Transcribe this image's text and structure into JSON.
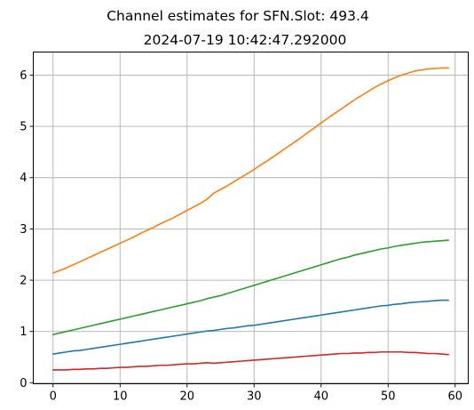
{
  "chart_data": {
    "type": "line",
    "title": "Channel estimates for SFN.Slot: 493.4",
    "subtitle": "2024-07-19 10:42:47.292000",
    "xlabel": "",
    "ylabel": "",
    "xlim": [
      -2.95,
      61.95
    ],
    "ylim": [
      -0.02,
      6.45
    ],
    "xticks": [
      0,
      10,
      20,
      30,
      40,
      50,
      60
    ],
    "yticks": [
      0,
      1,
      2,
      3,
      4,
      5,
      6
    ],
    "grid": true,
    "legend": "none",
    "x": [
      0,
      1,
      2,
      3,
      4,
      5,
      6,
      7,
      8,
      9,
      10,
      11,
      12,
      13,
      14,
      15,
      16,
      17,
      18,
      19,
      20,
      21,
      22,
      23,
      24,
      25,
      26,
      27,
      28,
      29,
      30,
      31,
      32,
      33,
      34,
      35,
      36,
      37,
      38,
      39,
      40,
      41,
      42,
      43,
      44,
      45,
      46,
      47,
      48,
      49,
      50,
      51,
      52,
      53,
      54,
      55,
      56,
      57,
      58,
      59
    ],
    "series": [
      {
        "color": "#ff7f0e",
        "values": [
          2.14,
          2.19,
          2.24,
          2.3,
          2.36,
          2.42,
          2.48,
          2.54,
          2.6,
          2.66,
          2.72,
          2.78,
          2.84,
          2.91,
          2.97,
          3.03,
          3.1,
          3.16,
          3.22,
          3.29,
          3.36,
          3.43,
          3.5,
          3.58,
          3.7,
          3.77,
          3.84,
          3.92,
          4.0,
          4.08,
          4.16,
          4.25,
          4.33,
          4.42,
          4.51,
          4.6,
          4.69,
          4.78,
          4.88,
          4.97,
          5.07,
          5.16,
          5.25,
          5.34,
          5.43,
          5.52,
          5.6,
          5.68,
          5.76,
          5.83,
          5.89,
          5.95,
          6.0,
          6.04,
          6.08,
          6.1,
          6.12,
          6.13,
          6.14,
          6.14
        ]
      },
      {
        "color": "#2ca02c",
        "values": [
          0.94,
          0.97,
          1.0,
          1.03,
          1.06,
          1.09,
          1.12,
          1.15,
          1.18,
          1.21,
          1.24,
          1.27,
          1.3,
          1.33,
          1.36,
          1.39,
          1.42,
          1.45,
          1.48,
          1.51,
          1.54,
          1.57,
          1.6,
          1.64,
          1.67,
          1.7,
          1.74,
          1.78,
          1.82,
          1.86,
          1.9,
          1.94,
          1.98,
          2.02,
          2.06,
          2.1,
          2.14,
          2.18,
          2.22,
          2.26,
          2.3,
          2.34,
          2.38,
          2.42,
          2.45,
          2.49,
          2.52,
          2.55,
          2.58,
          2.61,
          2.63,
          2.66,
          2.68,
          2.7,
          2.72,
          2.74,
          2.75,
          2.76,
          2.77,
          2.78
        ]
      },
      {
        "color": "#1f77b4",
        "values": [
          0.56,
          0.58,
          0.6,
          0.62,
          0.63,
          0.65,
          0.67,
          0.69,
          0.71,
          0.73,
          0.75,
          0.77,
          0.79,
          0.81,
          0.83,
          0.85,
          0.87,
          0.89,
          0.91,
          0.93,
          0.95,
          0.97,
          0.99,
          1.01,
          1.02,
          1.04,
          1.06,
          1.07,
          1.09,
          1.11,
          1.12,
          1.14,
          1.16,
          1.18,
          1.2,
          1.22,
          1.24,
          1.26,
          1.28,
          1.3,
          1.32,
          1.34,
          1.36,
          1.38,
          1.4,
          1.42,
          1.44,
          1.46,
          1.48,
          1.5,
          1.51,
          1.53,
          1.54,
          1.56,
          1.57,
          1.58,
          1.59,
          1.6,
          1.61,
          1.61
        ]
      },
      {
        "color": "#d62728",
        "values": [
          0.25,
          0.25,
          0.25,
          0.26,
          0.26,
          0.27,
          0.27,
          0.28,
          0.28,
          0.29,
          0.3,
          0.3,
          0.31,
          0.32,
          0.32,
          0.33,
          0.34,
          0.34,
          0.35,
          0.36,
          0.37,
          0.37,
          0.38,
          0.39,
          0.38,
          0.39,
          0.4,
          0.41,
          0.42,
          0.43,
          0.44,
          0.45,
          0.46,
          0.47,
          0.48,
          0.49,
          0.5,
          0.51,
          0.52,
          0.53,
          0.54,
          0.55,
          0.56,
          0.57,
          0.57,
          0.58,
          0.58,
          0.59,
          0.59,
          0.6,
          0.6,
          0.6,
          0.6,
          0.59,
          0.59,
          0.58,
          0.57,
          0.57,
          0.56,
          0.55
        ]
      }
    ]
  }
}
